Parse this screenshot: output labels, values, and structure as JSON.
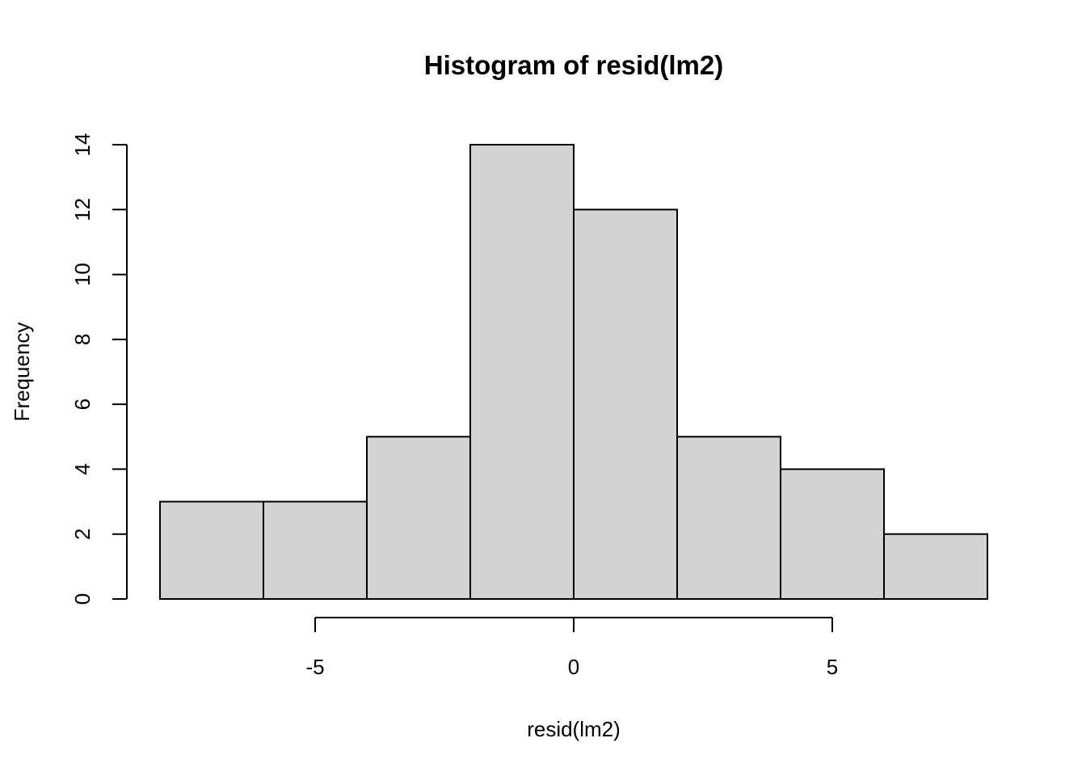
{
  "chart_data": {
    "type": "bar",
    "title": "Histogram of resid(lm2)",
    "xlabel": "resid(lm2)",
    "ylabel": "Frequency",
    "bins": [
      {
        "x0": -8,
        "x1": -6,
        "value": 3
      },
      {
        "x0": -6,
        "x1": -4,
        "value": 3
      },
      {
        "x0": -4,
        "x1": -2,
        "value": 5
      },
      {
        "x0": -2,
        "x1": 0,
        "value": 14
      },
      {
        "x0": 0,
        "x1": 2,
        "value": 12
      },
      {
        "x0": 2,
        "x1": 4,
        "value": 5
      },
      {
        "x0": 4,
        "x1": 6,
        "value": 4
      },
      {
        "x0": 6,
        "x1": 8,
        "value": 2
      }
    ],
    "xlim": [
      -8,
      8
    ],
    "ylim": [
      0,
      14
    ],
    "x_ticks": [
      -5,
      0,
      5
    ],
    "x_tick_labels": [
      "-5",
      "0",
      "5"
    ],
    "y_ticks": [
      0,
      2,
      4,
      6,
      8,
      10,
      12,
      14
    ],
    "y_tick_labels": [
      "0",
      "2",
      "4",
      "6",
      "8",
      "10",
      "12",
      "14"
    ],
    "bar_fill": "#d3d3d3",
    "bar_stroke": "#000000",
    "grid": false,
    "legend": "none"
  }
}
